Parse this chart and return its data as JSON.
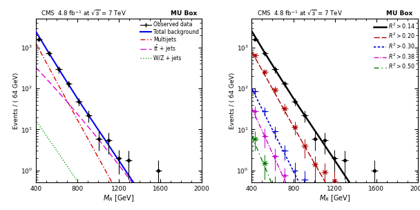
{
  "title_left": "CMS  4.8 fb$^{-1}$ at $\\sqrt{s}$ = 7 TeV",
  "title_right": "MU Box",
  "xlabel": "$M_R$ [GeV]",
  "ylabel": "Events / ( 64 GeV)",
  "xlim": [
    400,
    2000
  ],
  "ylim": [
    0.5,
    5000
  ],
  "left_panel": {
    "obs_x": [
      430,
      526,
      622,
      718,
      814,
      910,
      1006,
      1102,
      1198,
      1294,
      1582
    ],
    "obs_y": [
      1600,
      720,
      295,
      130,
      48,
      22,
      6.0,
      5.5,
      2.0,
      1.8,
      1.0
    ],
    "obs_xerr": [
      32,
      32,
      32,
      32,
      32,
      32,
      32,
      32,
      32,
      32,
      32
    ],
    "obs_yerr_lo": [
      130,
      95,
      55,
      22,
      10,
      7,
      3.0,
      3.0,
      1.2,
      1.2,
      0.8
    ],
    "obs_yerr_hi": [
      130,
      95,
      55,
      22,
      10,
      7,
      3.0,
      3.0,
      1.2,
      1.2,
      0.8
    ],
    "total_bg_x": [
      400,
      450,
      500,
      550,
      600,
      650,
      700,
      750,
      800,
      850,
      900,
      950,
      1000,
      1050,
      1100,
      1150,
      1200,
      1250,
      1300,
      1350,
      1400,
      1500,
      1600,
      1700,
      1800,
      1900,
      2000
    ],
    "total_bg_y": [
      2500,
      1550,
      950,
      590,
      370,
      230,
      145,
      92,
      58,
      37,
      24,
      15.5,
      10,
      6.5,
      4.2,
      2.7,
      1.75,
      1.13,
      0.73,
      0.47,
      0.3,
      0.125,
      0.052,
      0.022,
      0.009,
      0.004,
      0.0016
    ],
    "multijets_x": [
      400,
      450,
      500,
      550,
      600,
      650,
      700,
      750,
      800,
      850,
      900,
      950,
      1000,
      1050,
      1100,
      1150,
      1200,
      1250,
      1300,
      1350,
      1400,
      1500
    ],
    "multijets_y": [
      1300,
      750,
      440,
      255,
      148,
      87,
      51,
      30,
      17.5,
      10.3,
      6.1,
      3.6,
      2.1,
      1.25,
      0.73,
      0.43,
      0.25,
      0.147,
      0.086,
      0.05,
      0.029,
      0.01
    ],
    "ttjets_x": [
      400,
      450,
      500,
      550,
      600,
      650,
      700,
      750,
      800,
      850,
      900,
      950,
      1000,
      1050,
      1100,
      1150,
      1200,
      1250,
      1300,
      1350,
      1400
    ],
    "ttjets_y": [
      330,
      240,
      175,
      127,
      92,
      67,
      48,
      34,
      24,
      17,
      12,
      8.5,
      5.9,
      4.1,
      2.85,
      1.97,
      1.35,
      0.93,
      0.63,
      0.43,
      0.29
    ],
    "wzjets_x": [
      400,
      450,
      500,
      550,
      600,
      650,
      700,
      750,
      800,
      850,
      900,
      950,
      1000
    ],
    "wzjets_y": [
      17,
      11,
      7.2,
      4.7,
      3.1,
      2.0,
      1.3,
      0.85,
      0.55,
      0.36,
      0.23,
      0.15,
      0.096
    ]
  },
  "right_panel": {
    "r2_labels": [
      "$R^2 > 0.14$",
      "$R^2 > 0.20$",
      "$R^2 > 0.30$",
      "$R^2 > 0.38$",
      "$R^2 > 0.50$"
    ],
    "r2_colors": [
      "#000000",
      "#aa0000",
      "#0000cc",
      "#cc00cc",
      "#007700"
    ],
    "r2_line_x": [
      [
        400,
        450,
        500,
        550,
        600,
        650,
        700,
        750,
        800,
        850,
        900,
        950,
        1000,
        1050,
        1100,
        1150,
        1200,
        1250,
        1300,
        1350,
        1400,
        1500,
        1600,
        1700,
        1800,
        1900,
        2000
      ],
      [
        400,
        450,
        500,
        550,
        600,
        650,
        700,
        750,
        800,
        850,
        900,
        950,
        1000,
        1050,
        1100,
        1150,
        1200,
        1300,
        1400,
        1500,
        1600
      ],
      [
        400,
        450,
        500,
        550,
        600,
        650,
        700,
        750,
        800,
        850,
        900,
        950,
        1000,
        1050,
        1100,
        1150,
        1200
      ],
      [
        400,
        450,
        500,
        550,
        600,
        650,
        700,
        750,
        800,
        850,
        900,
        950,
        1000,
        1050,
        1100
      ],
      [
        400,
        450,
        500,
        550,
        600,
        650,
        700,
        750,
        800
      ]
    ],
    "r2_line_y": [
      [
        2500,
        1550,
        950,
        590,
        370,
        230,
        145,
        92,
        58,
        37,
        24,
        15.5,
        10,
        6.5,
        4.2,
        2.7,
        1.75,
        1.13,
        0.73,
        0.47,
        0.3,
        0.125,
        0.052,
        0.022,
        0.009,
        0.004,
        0.0016
      ],
      [
        800,
        470,
        280,
        165,
        98,
        58,
        34,
        20,
        12,
        7.2,
        4.3,
        2.6,
        1.55,
        0.93,
        0.56,
        0.33,
        0.2,
        0.073,
        0.027,
        0.01,
        0.0038
      ],
      [
        100,
        56,
        31,
        17.5,
        9.8,
        5.5,
        3.1,
        1.74,
        0.97,
        0.54,
        0.3,
        0.167,
        0.093,
        0.052,
        0.029,
        0.016,
        0.009
      ],
      [
        33,
        17.5,
        9.3,
        4.9,
        2.6,
        1.37,
        0.72,
        0.38,
        0.2,
        0.105,
        0.055,
        0.029,
        0.015,
        0.008,
        0.004
      ],
      [
        7.0,
        3.5,
        1.75,
        0.875,
        0.437,
        0.218,
        0.109,
        0.055,
        0.027
      ]
    ],
    "obs_sets": [
      {
        "x": [
          430,
          526,
          622,
          718,
          814,
          910,
          1006,
          1102,
          1198,
          1294,
          1582
        ],
        "y": [
          1600,
          720,
          295,
          130,
          48,
          22,
          6.0,
          5.5,
          2.0,
          1.8,
          1.0
        ],
        "xerr": 32,
        "yerr_lo": [
          130,
          95,
          55,
          22,
          10,
          7,
          3.0,
          3.0,
          1.2,
          1.2,
          0.8
        ],
        "yerr_hi": [
          130,
          95,
          55,
          22,
          10,
          7,
          3.0,
          3.0,
          1.2,
          1.2,
          0.8
        ],
        "color": "#000000",
        "marker": "o",
        "ms": 2.5,
        "filled": true
      },
      {
        "x": [
          430,
          526,
          622,
          718,
          814,
          910,
          1006,
          1102,
          1198
        ],
        "y": [
          650,
          250,
          92,
          33,
          11.5,
          4.0,
          1.4,
          0.9,
          0.55
        ],
        "xerr": 32,
        "yerr_lo": [
          90,
          50,
          22,
          9,
          4,
          2,
          0.85,
          0.6,
          0.4
        ],
        "yerr_hi": [
          90,
          50,
          22,
          9,
          4,
          2,
          0.85,
          0.6,
          0.4
        ],
        "color": "#aa0000",
        "marker": "x",
        "ms": 4.0,
        "filled": false
      },
      {
        "x": [
          430,
          526,
          622,
          718,
          814,
          910,
          1006
        ],
        "y": [
          85,
          28,
          9.0,
          3.0,
          1.0,
          0.6,
          0.35
        ],
        "xerr": 32,
        "yerr_lo": [
          18,
          7,
          3,
          1.2,
          0.6,
          0.4,
          0.25
        ],
        "yerr_hi": [
          18,
          7,
          3,
          1.2,
          0.6,
          0.4,
          0.25
        ],
        "color": "#0000cc",
        "marker": "+",
        "ms": 4.5,
        "filled": false
      },
      {
        "x": [
          430,
          526,
          622,
          718,
          814,
          910
        ],
        "y": [
          28,
          7.0,
          2.2,
          0.75,
          0.22,
          0.065
        ],
        "xerr": 32,
        "yerr_lo": [
          9,
          3.5,
          1.2,
          0.4,
          0.12,
          0.045
        ],
        "yerr_hi": [
          9,
          3.5,
          1.2,
          0.4,
          0.12,
          0.045
        ],
        "color": "#cc00cc",
        "marker": "o",
        "ms": 2.5,
        "filled": false
      },
      {
        "x": [
          430,
          526,
          622,
          718
        ],
        "y": [
          6.0,
          1.5,
          0.45,
          0.12
        ],
        "xerr": 32,
        "yerr_lo": [
          3.0,
          0.9,
          0.28,
          0.09
        ],
        "yerr_hi": [
          3.0,
          0.9,
          0.28,
          0.09
        ],
        "color": "#007700",
        "marker": "x",
        "ms": 4.0,
        "filled": false
      }
    ]
  }
}
